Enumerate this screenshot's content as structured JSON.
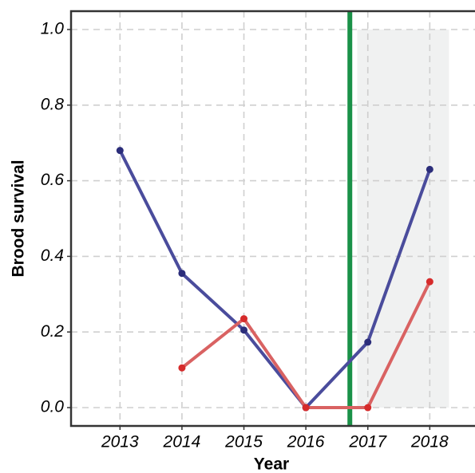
{
  "chart_data": {
    "type": "line",
    "x_label": "Year",
    "y_label": "Brood survival",
    "x": [
      2013,
      2014,
      2015,
      2016,
      2017,
      2018
    ],
    "series": [
      {
        "color": "#4a4c9c",
        "point_color": "#2b2d7a",
        "values": [
          0.68,
          0.355,
          0.205,
          0.0,
          0.173,
          0.63
        ]
      },
      {
        "color": "#d96262",
        "point_color": "#d62b2b",
        "values": [
          null,
          0.105,
          0.235,
          0.0,
          0.0,
          0.333
        ]
      }
    ],
    "xlim": [
      2012.21,
      2018.73
    ],
    "ylim": [
      -0.0485,
      1.0485
    ],
    "xticks": [
      2013,
      2014,
      2015,
      2016,
      2017,
      2018
    ],
    "yticks": [
      {
        "value": 0,
        "label": "0.0"
      },
      {
        "value": 0.2,
        "label": "0.2"
      },
      {
        "value": 0.4,
        "label": "0.4"
      },
      {
        "value": 0.6,
        "label": "0.6"
      },
      {
        "value": 0.8,
        "label": "0.8"
      },
      {
        "value": 1,
        "label": "1.0"
      }
    ],
    "grid": true,
    "vline": {
      "x": 2016.71,
      "color": "#1a9148"
    },
    "shade": {
      "xlim": [
        2016.83,
        2018.31
      ],
      "ylim": [
        0,
        1
      ],
      "color": "#f0f1f1"
    }
  }
}
